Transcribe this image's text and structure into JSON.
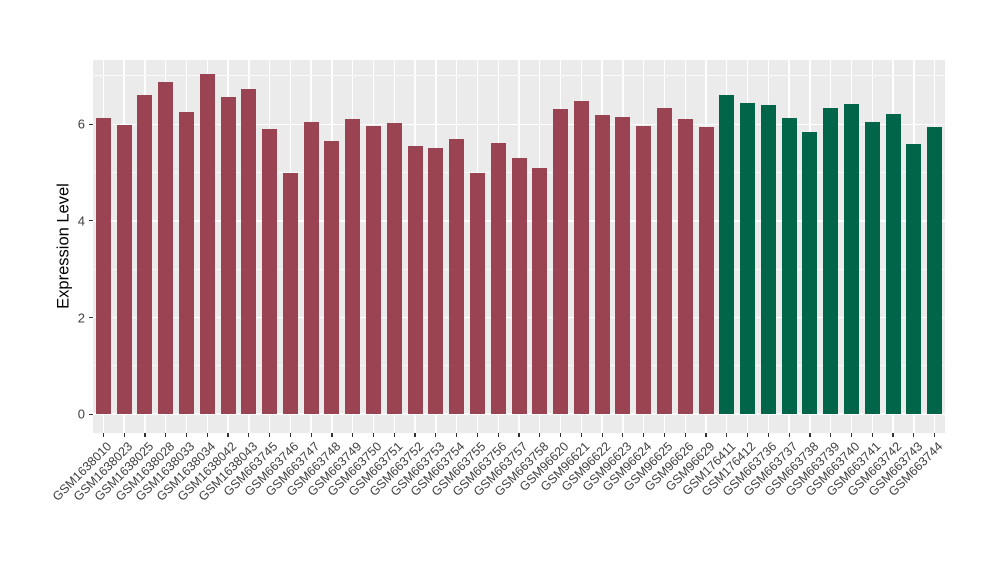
{
  "figure": {
    "background": "#FFFFFF",
    "panel_background": "#EBEBEB",
    "grid_color": "#FFFFFF",
    "tick_color": "#333333",
    "axis_text_color": "#404040",
    "axis_title_color": "#000000"
  },
  "chart_data": {
    "type": "bar",
    "title": "",
    "xlabel": "",
    "ylabel": "Expression Level",
    "legend_position": "none",
    "grid": "on",
    "x_tick_rotation": 45,
    "yticks": [
      0,
      2,
      4,
      6
    ],
    "yticks_minor": [
      1,
      3,
      5,
      7
    ],
    "ylim": [
      -0.39,
      7.33
    ],
    "group_colors": [
      "#9A4352",
      "#016649"
    ],
    "categories": [
      "GSM1638010",
      "GSM1638023",
      "GSM1638025",
      "GSM1638028",
      "GSM1638033",
      "GSM1638034",
      "GSM1638042",
      "GSM1638043",
      "GSM663745",
      "GSM663746",
      "GSM663747",
      "GSM663748",
      "GSM663749",
      "GSM663750",
      "GSM663751",
      "GSM663752",
      "GSM663753",
      "GSM663754",
      "GSM663755",
      "GSM663756",
      "GSM663757",
      "GSM663758",
      "GSM96620",
      "GSM96621",
      "GSM96622",
      "GSM96623",
      "GSM96624",
      "GSM96625",
      "GSM96626",
      "GSM96629",
      "GSM176411",
      "GSM176412",
      "GSM663736",
      "GSM663737",
      "GSM663738",
      "GSM663739",
      "GSM663740",
      "GSM663741",
      "GSM663742",
      "GSM663743",
      "GSM663744"
    ],
    "values": [
      6.12,
      5.98,
      6.61,
      6.87,
      6.26,
      7.03,
      6.57,
      6.73,
      5.9,
      5.0,
      6.05,
      5.65,
      6.1,
      5.97,
      6.02,
      5.55,
      5.51,
      5.7,
      5.0,
      5.62,
      5.3,
      5.1,
      6.31,
      6.48,
      6.19,
      6.14,
      5.97,
      6.33,
      6.11,
      5.95,
      6.61,
      6.44,
      6.39,
      6.12,
      5.84,
      6.33,
      6.41,
      6.05,
      6.22,
      5.59,
      5.94
    ],
    "bar_groups": [
      0,
      0,
      0,
      0,
      0,
      0,
      0,
      0,
      0,
      0,
      0,
      0,
      0,
      0,
      0,
      0,
      0,
      0,
      0,
      0,
      0,
      0,
      0,
      0,
      0,
      0,
      0,
      0,
      0,
      0,
      1,
      1,
      1,
      1,
      1,
      1,
      1,
      1,
      1,
      1,
      1
    ]
  }
}
